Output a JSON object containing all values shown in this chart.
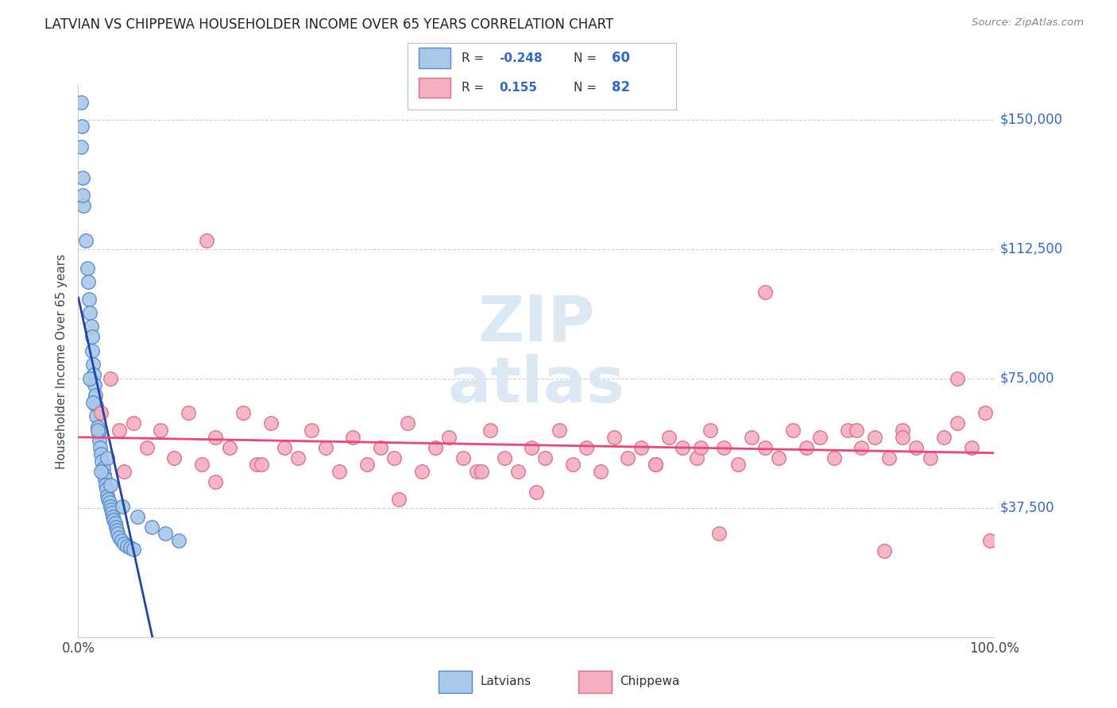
{
  "title": "LATVIAN VS CHIPPEWA HOUSEHOLDER INCOME OVER 65 YEARS CORRELATION CHART",
  "source": "Source: ZipAtlas.com",
  "ylabel": "Householder Income Over 65 years",
  "y_ticks": [
    0,
    37500,
    75000,
    112500,
    150000
  ],
  "y_tick_labels": [
    "",
    "$37,500",
    "$75,000",
    "$112,500",
    "$150,000"
  ],
  "xlim": [
    0,
    100
  ],
  "ylim": [
    0,
    160000
  ],
  "latvian_R": -0.248,
  "latvian_N": 60,
  "chippewa_R": 0.155,
  "chippewa_N": 82,
  "latvian_color": "#a8c8e8",
  "latvian_edge": "#5588cc",
  "chippewa_color": "#f4b0c0",
  "chippewa_edge": "#dd6688",
  "trend_latvian_color": "#2244aa",
  "trend_chippewa_color": "#ee4477",
  "trend_ext_color": "#bbbbbb",
  "watermark_zip_color": "#dde8f5",
  "watermark_atlas_color": "#dde8f5",
  "grid_color": "#cccccc",
  "background_color": "#ffffff",
  "title_color": "#222222",
  "source_color": "#888888",
  "label_color": "#444444",
  "right_tick_color": "#3366cc",
  "legend_text_color": "#333333",
  "legend_val_color": "#3366cc",
  "latvian_x": [
    0.4,
    0.5,
    0.6,
    0.8,
    1.0,
    1.1,
    1.2,
    1.3,
    1.4,
    1.5,
    1.5,
    1.6,
    1.7,
    1.8,
    1.9,
    2.0,
    2.0,
    2.1,
    2.2,
    2.3,
    2.4,
    2.5,
    2.6,
    2.7,
    2.8,
    2.9,
    3.0,
    3.1,
    3.2,
    3.3,
    3.4,
    3.5,
    3.6,
    3.7,
    3.8,
    3.9,
    4.0,
    4.1,
    4.2,
    4.3,
    4.5,
    4.7,
    5.0,
    5.3,
    5.7,
    6.0,
    0.3,
    0.3,
    0.5,
    3.2,
    1.3,
    1.6,
    2.1,
    2.5,
    3.5,
    4.8,
    6.5,
    8.0,
    9.5,
    11.0
  ],
  "latvian_y": [
    148000,
    133000,
    125000,
    115000,
    107000,
    103000,
    98000,
    94000,
    90000,
    87000,
    83000,
    79000,
    76000,
    73000,
    70000,
    67000,
    64000,
    61000,
    59000,
    57000,
    55000,
    53000,
    51000,
    49000,
    47000,
    46000,
    44000,
    43000,
    41000,
    40000,
    39000,
    38000,
    37000,
    36000,
    35000,
    34000,
    33000,
    32000,
    31000,
    30000,
    29000,
    28000,
    27000,
    26500,
    26000,
    25500,
    155000,
    142000,
    128000,
    52000,
    75000,
    68000,
    60000,
    48000,
    44000,
    38000,
    35000,
    32000,
    30000,
    28000
  ],
  "chippewa_x": [
    2.5,
    3.5,
    4.5,
    6.0,
    7.5,
    9.0,
    10.5,
    12.0,
    13.5,
    15.0,
    16.5,
    18.0,
    19.5,
    21.0,
    22.5,
    24.0,
    25.5,
    27.0,
    28.5,
    30.0,
    31.5,
    33.0,
    34.5,
    36.0,
    37.5,
    39.0,
    40.5,
    42.0,
    43.5,
    45.0,
    46.5,
    48.0,
    49.5,
    51.0,
    52.5,
    54.0,
    55.5,
    57.0,
    58.5,
    60.0,
    61.5,
    63.0,
    64.5,
    66.0,
    67.5,
    69.0,
    70.5,
    72.0,
    73.5,
    75.0,
    76.5,
    78.0,
    79.5,
    81.0,
    82.5,
    84.0,
    85.5,
    87.0,
    88.5,
    90.0,
    91.5,
    93.0,
    94.5,
    96.0,
    97.5,
    99.0,
    5.0,
    20.0,
    44.0,
    63.0,
    68.0,
    85.0,
    90.0,
    96.0,
    99.5,
    15.0,
    35.0,
    50.0,
    70.0,
    88.0,
    14.0,
    75.0
  ],
  "chippewa_y": [
    65000,
    75000,
    60000,
    62000,
    55000,
    60000,
    52000,
    65000,
    50000,
    58000,
    55000,
    65000,
    50000,
    62000,
    55000,
    52000,
    60000,
    55000,
    48000,
    58000,
    50000,
    55000,
    52000,
    62000,
    48000,
    55000,
    58000,
    52000,
    48000,
    60000,
    52000,
    48000,
    55000,
    52000,
    60000,
    50000,
    55000,
    48000,
    58000,
    52000,
    55000,
    50000,
    58000,
    55000,
    52000,
    60000,
    55000,
    50000,
    58000,
    55000,
    52000,
    60000,
    55000,
    58000,
    52000,
    60000,
    55000,
    58000,
    52000,
    60000,
    55000,
    52000,
    58000,
    62000,
    55000,
    65000,
    48000,
    50000,
    48000,
    50000,
    55000,
    60000,
    58000,
    75000,
    28000,
    45000,
    40000,
    42000,
    30000,
    25000,
    115000,
    100000
  ]
}
